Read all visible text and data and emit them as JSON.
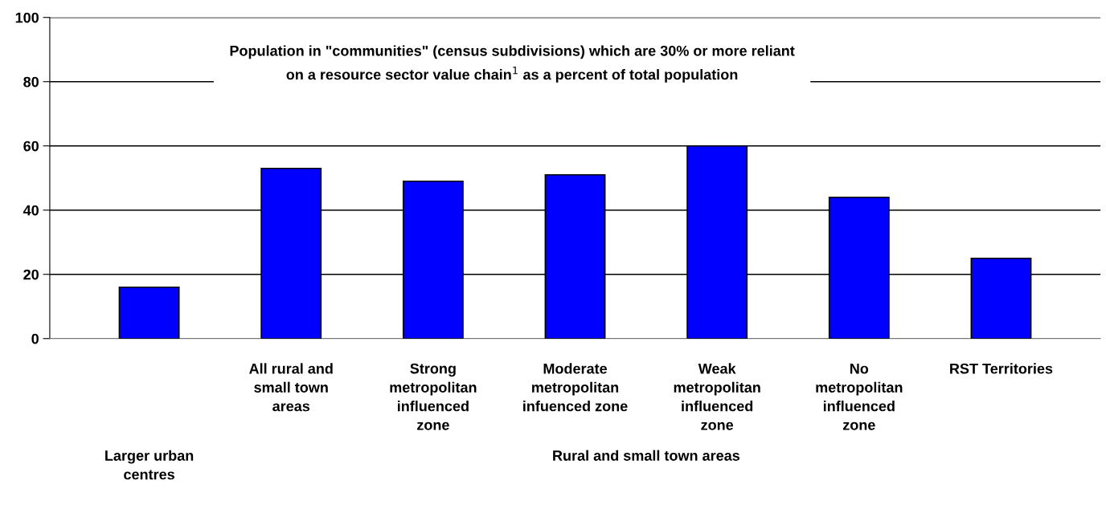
{
  "chart_data": {
    "type": "bar",
    "title": "Population in \"communities\" (census subdivisions) which are 30% or more reliant\non a resource sector value chain$^{1}$ as a percent of total population",
    "categories": [
      null,
      "All rural and\nsmall town\nareas",
      "Strong\nmetropolitan\ninfluenced\nzone",
      "Moderate\nmetropolitan\ninfuenced zone",
      "Weak\nmetropolitan\ninfluenced\nzone",
      "No\nmetropolitan\ninfluenced\nzone",
      "RST Territories"
    ],
    "values": [
      16,
      53,
      49,
      51,
      60,
      44,
      25
    ],
    "color": "#0000ff",
    "ylim": [
      0,
      100
    ],
    "yticks": [
      0,
      20,
      40,
      60,
      80,
      100
    ],
    "grid": "y",
    "annotations": [
      "Larger urban\ncentres",
      "Rural and small town areas"
    ]
  }
}
